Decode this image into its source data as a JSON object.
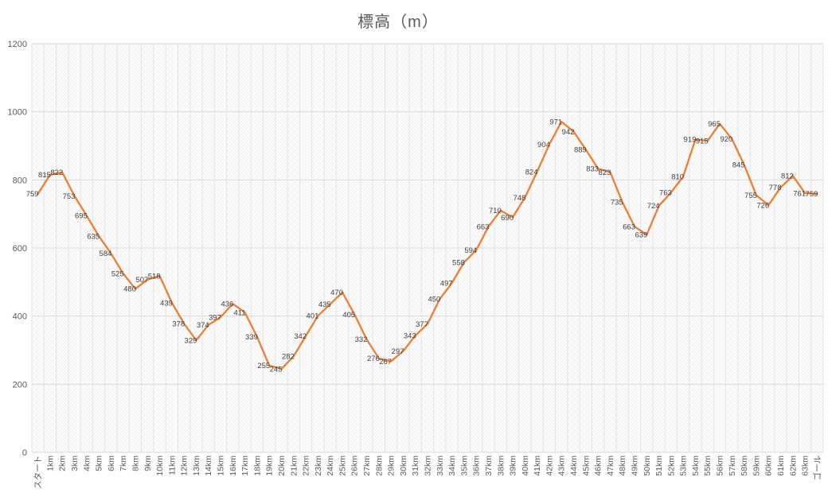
{
  "title": "標高（m）",
  "colors": {
    "line": "#ED7D31",
    "data_label": "#404040",
    "axis_text": "#595959",
    "title_text": "#595959",
    "h_gridline": "#D9D9D9",
    "v_gridline": "#E2E2E2",
    "hatch": "#EBEBEB",
    "background": "#FFFFFF"
  },
  "chart_data": {
    "type": "line",
    "title": "標高（m）",
    "categories": [
      "スタート",
      "1km",
      "2km",
      "3km",
      "4km",
      "5km",
      "6km",
      "7km",
      "8km",
      "9km",
      "10km",
      "11km",
      "12km",
      "13km",
      "14km",
      "15km",
      "16km",
      "17km",
      "18km",
      "19km",
      "20km",
      "21km",
      "22km",
      "23km",
      "24km",
      "25km",
      "26km",
      "27km",
      "28km",
      "29km",
      "30km",
      "31km",
      "32km",
      "33km",
      "34km",
      "35km",
      "36km",
      "37km",
      "38km",
      "39km",
      "40km",
      "41km",
      "42km",
      "43km",
      "44km",
      "45km",
      "46km",
      "47km",
      "48km",
      "49km",
      "50km",
      "51km",
      "52km",
      "53km",
      "54km",
      "55km",
      "56km",
      "57km",
      "58km",
      "59km",
      "60km",
      "61km",
      "62km",
      "63km",
      "ゴール"
    ],
    "values": [
      759,
      815,
      822,
      753,
      695,
      635,
      584,
      525,
      480,
      507,
      518,
      439,
      378,
      329,
      374,
      397,
      436,
      411,
      339,
      255,
      245,
      282,
      342,
      401,
      435,
      470,
      405,
      332,
      276,
      267,
      297,
      343,
      377,
      450,
      497,
      558,
      594,
      663,
      710,
      690,
      748,
      824,
      904,
      971,
      942,
      889,
      833,
      823,
      735,
      663,
      639,
      724,
      763,
      810,
      919,
      915,
      965,
      920,
      845,
      755,
      726,
      778,
      812,
      761,
      759
    ],
    "xlabel": "",
    "ylabel": "",
    "ylim": [
      0,
      1200
    ],
    "ytick_labels": [
      "0",
      "200",
      "400",
      "600",
      "800",
      "1000",
      "1200"
    ],
    "grid": {
      "horizontal": true,
      "vertical": true
    },
    "legend": "none",
    "data_labels": true,
    "plot_area_fill": "light-diagonal-hatch"
  }
}
